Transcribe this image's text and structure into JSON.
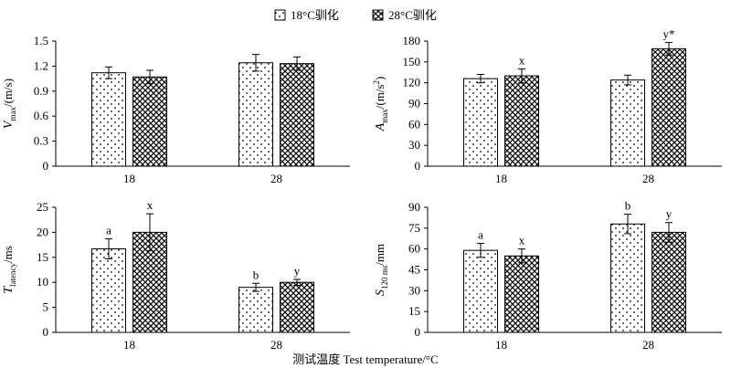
{
  "legend": {
    "items": [
      {
        "label": "18°C驯化",
        "pattern": "dots"
      },
      {
        "label": "28°C驯化",
        "pattern": "crosshatch"
      }
    ]
  },
  "x_axis_title": "测试温度 Test temperature/°C",
  "chart_data": [
    {
      "type": "bar",
      "ylabel_italic": "V",
      "ylabel_sub": "max",
      "ylabel_rest": "/(m/s)",
      "categories": [
        "18",
        "28"
      ],
      "ylim": [
        0,
        1.5
      ],
      "yticks": [
        "0",
        "0.3",
        "0.6",
        "0.9",
        "1.2",
        "1.5"
      ],
      "series": [
        {
          "name": "18°C驯化",
          "values": [
            1.12,
            1.24
          ],
          "errors": [
            0.07,
            0.1
          ],
          "labels": [
            "",
            ""
          ]
        },
        {
          "name": "28°C驯化",
          "values": [
            1.07,
            1.23
          ],
          "errors": [
            0.08,
            0.08
          ],
          "labels": [
            "",
            ""
          ]
        }
      ]
    },
    {
      "type": "bar",
      "ylabel_italic": "A",
      "ylabel_sub": "max",
      "ylabel_rest": "/(m/s",
      "ylabel_sup": "2",
      "ylabel_end": ")",
      "categories": [
        "18",
        "28"
      ],
      "ylim": [
        0,
        180
      ],
      "yticks": [
        "0",
        "30",
        "60",
        "90",
        "120",
        "150",
        "180"
      ],
      "series": [
        {
          "name": "18°C驯化",
          "values": [
            126,
            124
          ],
          "errors": [
            6,
            7
          ],
          "labels": [
            "",
            ""
          ]
        },
        {
          "name": "28°C驯化",
          "values": [
            130,
            169
          ],
          "errors": [
            10,
            9
          ],
          "labels": [
            "x",
            "y*"
          ]
        }
      ]
    },
    {
      "type": "bar",
      "ylabel_italic": "T",
      "ylabel_sub": "latency",
      "ylabel_rest": "/ms",
      "categories": [
        "18",
        "28"
      ],
      "ylim": [
        0,
        25
      ],
      "yticks": [
        "0",
        "5",
        "10",
        "15",
        "20",
        "25"
      ],
      "series": [
        {
          "name": "18°C驯化",
          "values": [
            16.7,
            9.0
          ],
          "errors": [
            2.0,
            0.8
          ],
          "labels": [
            "a",
            "b"
          ]
        },
        {
          "name": "28°C驯化",
          "values": [
            20.0,
            10.0
          ],
          "errors": [
            3.7,
            0.6
          ],
          "labels": [
            "x",
            "y"
          ]
        }
      ]
    },
    {
      "type": "bar",
      "ylabel_italic": "S",
      "ylabel_sub": "120 ms",
      "ylabel_rest": "/mm",
      "categories": [
        "18",
        "28"
      ],
      "ylim": [
        0,
        90
      ],
      "yticks": [
        "0",
        "15",
        "30",
        "45",
        "60",
        "75",
        "90"
      ],
      "series": [
        {
          "name": "18°C驯化",
          "values": [
            59,
            78
          ],
          "errors": [
            5,
            7
          ],
          "labels": [
            "a",
            "b"
          ]
        },
        {
          "name": "28°C驯化",
          "values": [
            55,
            72
          ],
          "errors": [
            5,
            7
          ],
          "labels": [
            "x",
            "y"
          ]
        }
      ]
    }
  ]
}
